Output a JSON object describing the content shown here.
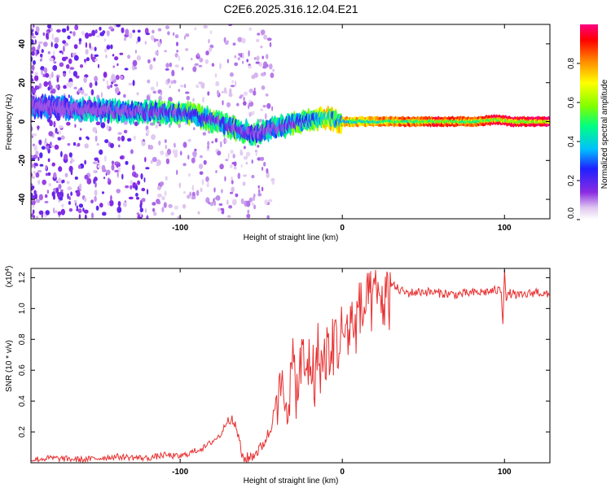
{
  "figure": {
    "title": "C2E6.2025.316.12.04.E21"
  },
  "chart_data": [
    {
      "type": "heatmap",
      "id": "spectrogram",
      "title": "C2E6.2025.316.12.04.E21",
      "xlabel": "Height of straight line (km)",
      "ylabel": "Frequency (Hz)",
      "xlim": [
        -192,
        128
      ],
      "ylim": [
        -50,
        50
      ],
      "xticks": [
        -100,
        0,
        100
      ],
      "yticks": [
        -40,
        -20,
        0,
        20,
        40
      ],
      "colorbar": {
        "label": "Normalized spectral amplitude",
        "range": [
          0,
          1
        ],
        "ticks": [
          0.0,
          0.2,
          0.4,
          0.6,
          0.8
        ],
        "tick_labels": [
          "0.0",
          "0.2",
          "0.4",
          "0.6",
          "0.8"
        ],
        "colormap": [
          "#ffffff",
          "#e0c8f0",
          "#8a2be2",
          "#2020ff",
          "#00c0ff",
          "#00ff80",
          "#7fff00",
          "#ffff00",
          "#ff8000",
          "#ff0000",
          "#ff0080"
        ]
      },
      "ridge": {
        "description": "dominant frequency ridge vs height",
        "x": [
          -192,
          -170,
          -150,
          -130,
          -110,
          -95,
          -85,
          -75,
          -65,
          -55,
          -45,
          -35,
          -25,
          -15,
          -10,
          -5,
          0,
          20,
          40,
          60,
          80,
          95,
          105,
          128
        ],
        "y": [
          8,
          7,
          6,
          5,
          5,
          4,
          2,
          -1,
          -4,
          -6,
          -4,
          -2,
          0,
          1,
          2,
          1,
          0,
          0,
          0,
          0,
          0,
          1,
          0,
          0
        ],
        "amplitude": [
          0.3,
          0.35,
          0.4,
          0.45,
          0.5,
          0.55,
          0.55,
          0.55,
          0.5,
          0.45,
          0.45,
          0.5,
          0.55,
          0.65,
          0.8,
          0.7,
          0.75,
          0.8,
          0.85,
          0.9,
          0.85,
          0.95,
          0.92,
          1.0
        ]
      }
    },
    {
      "type": "line",
      "id": "snr",
      "title": "",
      "xlabel": "Height of straight line (km)",
      "ylabel": "SNR (10 * v/v)",
      "y_multiplier": "(x10",
      "y_multiplier_exp": "4",
      "xlim": [
        -192,
        128
      ],
      "ylim": [
        0,
        1.26
      ],
      "xticks": [
        -100,
        0,
        100
      ],
      "yticks": [
        0.2,
        0.4,
        0.6,
        0.8,
        1.0,
        1.2
      ],
      "ytick_labels": [
        "0.2",
        "0.4",
        "0.6",
        "0.8",
        "1.0",
        "1.2"
      ],
      "series": [
        {
          "name": "SNR",
          "color": "#e83030",
          "x": [
            -192,
            -180,
            -160,
            -140,
            -120,
            -110,
            -100,
            -90,
            -85,
            -80,
            -75,
            -70,
            -65,
            -62,
            -60,
            -55,
            -50,
            -45,
            -42,
            -40,
            -37,
            -35,
            -32,
            -30,
            -28,
            -25,
            -22,
            -20,
            -17,
            -15,
            -12,
            -10,
            -7,
            -5,
            -2,
            0,
            3,
            5,
            8,
            10,
            15,
            20,
            25,
            30,
            35,
            40,
            50,
            60,
            70,
            80,
            90,
            98,
            99,
            100,
            101,
            103,
            110,
            120,
            128
          ],
          "y": [
            0.02,
            0.03,
            0.02,
            0.04,
            0.03,
            0.05,
            0.04,
            0.08,
            0.1,
            0.14,
            0.18,
            0.3,
            0.22,
            0.05,
            0.02,
            0.05,
            0.1,
            0.2,
            0.35,
            0.45,
            0.55,
            0.5,
            0.6,
            0.7,
            0.55,
            0.75,
            0.65,
            0.78,
            0.62,
            0.8,
            0.7,
            0.82,
            0.75,
            0.9,
            0.85,
            0.95,
            0.92,
            1.0,
            0.98,
            1.05,
            1.1,
            1.15,
            1.14,
            1.16,
            1.12,
            1.1,
            1.11,
            1.1,
            1.09,
            1.1,
            1.11,
            1.12,
            0.9,
            1.25,
            1.05,
            1.1,
            1.08,
            1.11,
            1.08
          ]
        }
      ]
    }
  ]
}
